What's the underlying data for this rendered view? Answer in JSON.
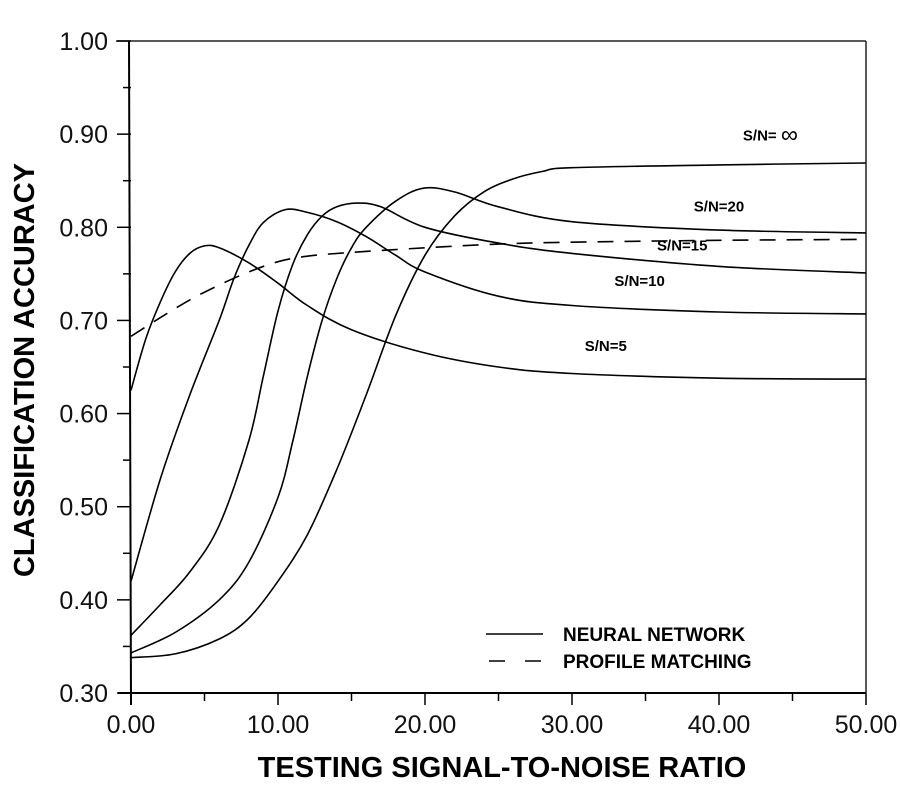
{
  "chart_data": {
    "type": "line",
    "title": "",
    "xlabel": "TESTING SIGNAL-TO-NOISE RATIO",
    "ylabel": "CLASSIFICATION ACCURACY",
    "xlim": [
      0,
      50
    ],
    "ylim": [
      0.3,
      1.0
    ],
    "xticks": [
      "0.00",
      "10.00",
      "20.00",
      "30.00",
      "40.00",
      "50.00"
    ],
    "yticks": [
      "0.30",
      "0.40",
      "0.50",
      "0.60",
      "0.70",
      "0.80",
      "0.90",
      "1.00"
    ],
    "grid": false,
    "legend_position": "lower right",
    "legend": [
      {
        "label": "NEURAL NETWORK",
        "style": "solid"
      },
      {
        "label": "PROFILE MATCHING",
        "style": "dashed"
      }
    ],
    "series": [
      {
        "name": "S/N=5",
        "method": "NEURAL NETWORK",
        "style": "solid",
        "x": [
          0,
          1,
          2,
          3,
          4,
          5,
          6,
          8,
          10,
          12,
          15,
          20,
          25,
          30,
          40,
          50
        ],
        "values": [
          0.625,
          0.68,
          0.72,
          0.752,
          0.772,
          0.78,
          0.778,
          0.762,
          0.74,
          0.716,
          0.69,
          0.665,
          0.65,
          0.643,
          0.638,
          0.637
        ]
      },
      {
        "name": "S/N=10",
        "method": "NEURAL NETWORK",
        "style": "solid",
        "x": [
          0,
          2,
          4,
          6,
          7,
          8,
          9,
          10.5,
          12,
          14,
          16,
          18,
          20,
          25,
          30,
          40,
          50
        ],
        "values": [
          0.42,
          0.53,
          0.62,
          0.7,
          0.745,
          0.78,
          0.805,
          0.819,
          0.816,
          0.806,
          0.79,
          0.77,
          0.752,
          0.726,
          0.716,
          0.709,
          0.707
        ]
      },
      {
        "name": "S/N=15",
        "method": "NEURAL NETWORK",
        "style": "solid",
        "x": [
          0,
          2,
          4,
          6,
          8,
          9,
          10,
          11,
          12,
          13,
          14,
          15.4,
          17,
          20,
          25,
          30,
          40,
          50
        ],
        "values": [
          0.362,
          0.395,
          0.43,
          0.48,
          0.57,
          0.64,
          0.71,
          0.76,
          0.792,
          0.812,
          0.822,
          0.826,
          0.822,
          0.8,
          0.783,
          0.772,
          0.758,
          0.751
        ]
      },
      {
        "name": "S/N=20",
        "method": "NEURAL NETWORK",
        "style": "solid",
        "x": [
          0,
          3,
          6,
          8,
          10,
          11,
          12,
          13,
          14,
          15,
          16,
          18,
          19.9,
          22,
          25,
          30,
          40,
          50
        ],
        "values": [
          0.343,
          0.365,
          0.4,
          0.44,
          0.51,
          0.57,
          0.64,
          0.7,
          0.745,
          0.778,
          0.8,
          0.828,
          0.842,
          0.838,
          0.822,
          0.806,
          0.797,
          0.794
        ]
      },
      {
        "name": "S/N= ∞",
        "method": "NEURAL NETWORK",
        "style": "solid",
        "x": [
          0,
          3,
          6,
          8,
          10,
          12,
          14,
          16,
          18,
          20,
          22,
          24,
          26,
          28,
          30,
          40,
          50
        ],
        "values": [
          0.338,
          0.342,
          0.358,
          0.38,
          0.42,
          0.47,
          0.54,
          0.62,
          0.705,
          0.77,
          0.812,
          0.838,
          0.852,
          0.86,
          0.864,
          0.867,
          0.869
        ]
      },
      {
        "name": "PROFILE MATCHING",
        "method": "PROFILE MATCHING",
        "style": "dashed",
        "x": [
          0,
          2,
          4,
          6,
          8,
          10,
          12,
          15,
          20,
          25,
          30,
          40,
          50
        ],
        "values": [
          0.683,
          0.703,
          0.722,
          0.738,
          0.752,
          0.763,
          0.769,
          0.773,
          0.778,
          0.782,
          0.784,
          0.786,
          0.787
        ]
      }
    ],
    "annotations": [
      {
        "text": "S/N= ∞",
        "series": "S/N= ∞",
        "x": 43.5,
        "y": 0.893
      },
      {
        "text": "S/N=20",
        "series": "S/N=20",
        "x": 40.0,
        "y": 0.817
      },
      {
        "text": "S/N=15",
        "series": "S/N=15",
        "x": 37.5,
        "y": 0.775
      },
      {
        "text": "S/N=10",
        "series": "S/N=10",
        "x": 34.6,
        "y": 0.737
      },
      {
        "text": "S/N=5",
        "series": "S/N=5",
        "x": 32.3,
        "y": 0.667
      }
    ]
  },
  "axes": {
    "x_title": "TESTING SIGNAL-TO-NOISE RATIO",
    "y_title": "CLASSIFICATION ACCURACY"
  },
  "legend": {
    "neural_label": "NEURAL NETWORK",
    "profile_label": "PROFILE MATCHING"
  },
  "colors": {
    "line": "#000000",
    "background": "#ffffff"
  }
}
